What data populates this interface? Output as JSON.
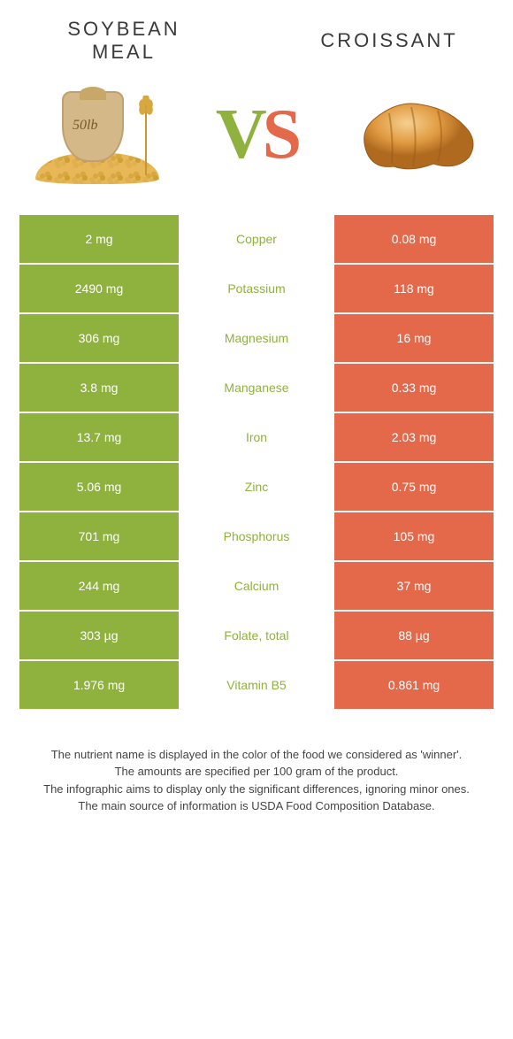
{
  "header": {
    "left_title": "Soybean meal",
    "right_title": "Croissant",
    "vs_v": "V",
    "vs_s": "S"
  },
  "colors": {
    "left_fill": "#8fb13e",
    "right_fill": "#e4694b",
    "left_text": "#8fb13e",
    "right_text": "#e4694b",
    "background": "#ffffff"
  },
  "sack_label": "50lb",
  "table": {
    "rows": [
      {
        "nutrient": "Copper",
        "left": "2 mg",
        "right": "0.08 mg",
        "winner": "left"
      },
      {
        "nutrient": "Potassium",
        "left": "2490 mg",
        "right": "118 mg",
        "winner": "left"
      },
      {
        "nutrient": "Magnesium",
        "left": "306 mg",
        "right": "16 mg",
        "winner": "left"
      },
      {
        "nutrient": "Manganese",
        "left": "3.8 mg",
        "right": "0.33 mg",
        "winner": "left"
      },
      {
        "nutrient": "Iron",
        "left": "13.7 mg",
        "right": "2.03 mg",
        "winner": "left"
      },
      {
        "nutrient": "Zinc",
        "left": "5.06 mg",
        "right": "0.75 mg",
        "winner": "left"
      },
      {
        "nutrient": "Phosphorus",
        "left": "701 mg",
        "right": "105 mg",
        "winner": "left"
      },
      {
        "nutrient": "Calcium",
        "left": "244 mg",
        "right": "37 mg",
        "winner": "left"
      },
      {
        "nutrient": "Folate, total",
        "left": "303 µg",
        "right": "88 µg",
        "winner": "left"
      },
      {
        "nutrient": "Vitamin B5",
        "left": "1.976 mg",
        "right": "0.861 mg",
        "winner": "left"
      }
    ]
  },
  "footnotes": {
    "line1": "The nutrient name is displayed in the color of the food we considered as 'winner'.",
    "line2": "The amounts are specified per 100 gram of the product.",
    "line3": "The infographic aims to display only the significant differences, ignoring minor ones.",
    "line4": "The main source of information is USDA Food Composition Database."
  }
}
